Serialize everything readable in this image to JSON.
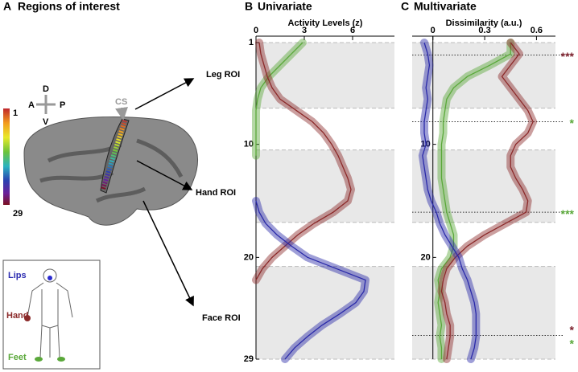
{
  "panel_a": {
    "letter": "A",
    "title": "Regions of interest",
    "sulcus": "CS",
    "directions": {
      "up": "D",
      "left": "A",
      "right": "P",
      "down": "V"
    },
    "colorbar": {
      "top": "1",
      "bottom": "29"
    },
    "rois": [
      "Leg ROI",
      "Hand ROI",
      "Face ROI"
    ],
    "body": [
      "Lips",
      "Hand",
      "Feet"
    ]
  },
  "chart_data": [
    {
      "type": "line",
      "orientation": "vertical",
      "panel": "B",
      "title": "Univariate",
      "xlabel": "Activity Levels (z)",
      "rois": [
        1,
        2,
        3,
        4,
        5,
        6,
        7,
        8,
        9,
        10,
        11,
        12,
        13,
        14,
        15,
        16,
        17,
        18,
        19,
        20,
        21,
        22,
        23,
        24,
        25,
        26,
        27,
        28,
        29
      ],
      "xlim": [
        0,
        8.6
      ],
      "xticks": [
        0,
        3,
        6
      ],
      "ylim": [
        1,
        29
      ],
      "yticks": [
        1,
        10,
        20,
        29
      ],
      "shaded": [
        [
          1,
          6.8
        ],
        [
          10.5,
          16.9
        ],
        [
          20.8,
          29
        ]
      ],
      "series": [
        {
          "name": "Feet",
          "color": "#5aa83a",
          "values": [
            2.9,
            2.2,
            1.5,
            0.8,
            0.3,
            0.1,
            0,
            0,
            0,
            0,
            0,
            null,
            null,
            null,
            null,
            null,
            null,
            null,
            null,
            null,
            null,
            null,
            null,
            null,
            null,
            null,
            null,
            null,
            null
          ]
        },
        {
          "name": "Hand",
          "color": "#8b2a2a",
          "values": [
            0.2,
            0.3,
            0.5,
            0.7,
            1.0,
            1.5,
            2.5,
            3.5,
            4.2,
            4.7,
            5.1,
            5.4,
            5.7,
            5.9,
            5.7,
            4.8,
            3.6,
            2.6,
            1.8,
            1.0,
            0.4,
            0.0,
            null,
            null,
            null,
            null,
            null,
            null,
            null
          ]
        },
        {
          "name": "Lips",
          "color": "#2a2aa8",
          "values": [
            null,
            null,
            null,
            null,
            null,
            null,
            null,
            null,
            null,
            null,
            null,
            null,
            null,
            null,
            0,
            0.2,
            0.6,
            1.3,
            2.2,
            3.2,
            5.0,
            6.8,
            6.7,
            6.2,
            5.2,
            4.1,
            3.2,
            2.4,
            1.8
          ]
        }
      ]
    },
    {
      "type": "line",
      "orientation": "vertical",
      "panel": "C",
      "title": "Multivariate",
      "xlabel": "Dissimilarity (a.u.)",
      "rois": [
        1,
        2,
        3,
        4,
        5,
        6,
        7,
        8,
        9,
        10,
        11,
        12,
        13,
        14,
        15,
        16,
        17,
        18,
        19,
        20,
        21,
        22,
        23,
        24,
        25,
        26,
        27,
        28,
        29
      ],
      "xlim": [
        -0.12,
        0.71
      ],
      "xticks": [
        0,
        0.3,
        0.6
      ],
      "ylim": [
        1,
        29
      ],
      "yticks": [
        10,
        20
      ],
      "shaded": [
        [
          1,
          6.8
        ],
        [
          10.5,
          16.9
        ],
        [
          20.8,
          29
        ]
      ],
      "dotted_lines": [
        2.1,
        8,
        16,
        26.9
      ],
      "annotations": [
        {
          "y": 2.1,
          "text": "***",
          "color": "#7a1f2b"
        },
        {
          "y": 8,
          "text": "*",
          "color": "#5aa83a"
        },
        {
          "y": 16,
          "text": "***",
          "color": "#5aa83a"
        },
        {
          "y": 26.3,
          "text": "*",
          "color": "#7a1f2b"
        },
        {
          "y": 27.5,
          "text": "*",
          "color": "#5aa83a"
        }
      ],
      "series": [
        {
          "name": "Feet",
          "color": "#5aa83a",
          "values": [
            0.45,
            0.45,
            0.33,
            0.2,
            0.12,
            0.08,
            0.07,
            0.06,
            0.06,
            0.05,
            0.05,
            0.05,
            0.05,
            0.06,
            0.07,
            0.08,
            0.1,
            0.12,
            0.12,
            0.1,
            0.05,
            0.03,
            0.04,
            0.03,
            0.04,
            0.05,
            0.04,
            0.05,
            0.05
          ]
        },
        {
          "name": "Hand",
          "color": "#8b2a2a",
          "values": [
            0.45,
            0.5,
            0.45,
            0.4,
            0.45,
            0.5,
            0.55,
            0.58,
            0.55,
            0.48,
            0.45,
            0.45,
            0.48,
            0.52,
            0.55,
            0.54,
            0.42,
            0.3,
            0.2,
            0.13,
            0.08,
            0.06,
            0.05,
            0.07,
            0.08,
            0.1,
            0.1,
            0.09,
            0.08
          ]
        },
        {
          "name": "Lips",
          "color": "#2a2aa8",
          "values": [
            -0.05,
            -0.03,
            -0.02,
            -0.03,
            -0.04,
            -0.03,
            -0.04,
            -0.05,
            -0.05,
            -0.04,
            -0.06,
            -0.05,
            -0.04,
            -0.03,
            -0.01,
            0.02,
            0.04,
            0.07,
            0.11,
            0.15,
            0.17,
            0.2,
            0.22,
            0.24,
            0.25,
            0.25,
            0.25,
            0.24,
            0.22
          ]
        }
      ]
    }
  ]
}
